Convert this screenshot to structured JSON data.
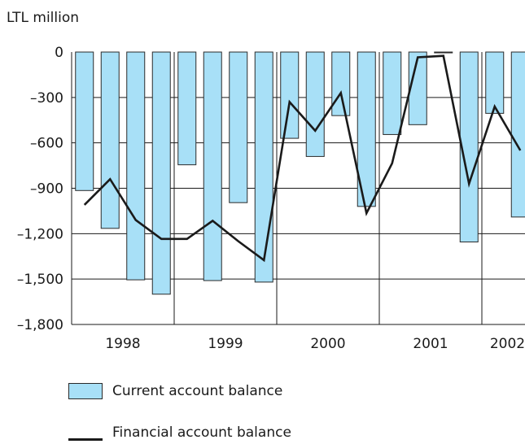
{
  "chart_data": {
    "type": "bar",
    "unit_label": "LTL million",
    "x_labels": [
      "1998",
      "1999",
      "2000",
      "2001",
      "2002"
    ],
    "quarters": [
      "1998 Q1",
      "1998 Q2",
      "1998 Q3",
      "1998 Q4",
      "1999 Q1",
      "1999 Q2",
      "1999 Q3",
      "1999 Q4",
      "2000 Q1",
      "2000 Q2",
      "2000 Q3",
      "2000 Q4",
      "2001 Q1",
      "2001 Q2",
      "2001 Q3",
      "2001 Q4",
      "2002 Q1",
      "2002 Q2"
    ],
    "ylim": [
      -1800,
      0
    ],
    "yticks": [
      0,
      -300,
      -600,
      -900,
      -1200,
      -1500,
      -1800
    ],
    "ytick_labels": [
      "0",
      "–300",
      "–600",
      "–900",
      "–1,200",
      "–1,500",
      "–1,800"
    ],
    "grid": true,
    "series": [
      {
        "name": "Current account balance",
        "kind": "bar",
        "color": "#a8e0f7",
        "values": [
          -915,
          -1165,
          -1505,
          -1600,
          -745,
          -1510,
          -995,
          -1520,
          -570,
          -690,
          -420,
          -1020,
          -545,
          -480,
          -5,
          -1255,
          -405,
          -1090
        ]
      },
      {
        "name": "Financial account balance",
        "kind": "line",
        "color": "#1a1a1a",
        "values": [
          -1010,
          -840,
          -1110,
          -1235,
          -1235,
          -1115,
          -1250,
          -1375,
          -330,
          -520,
          -270,
          -1065,
          -735,
          -35,
          -25,
          -870,
          -360,
          -650
        ]
      }
    ]
  }
}
